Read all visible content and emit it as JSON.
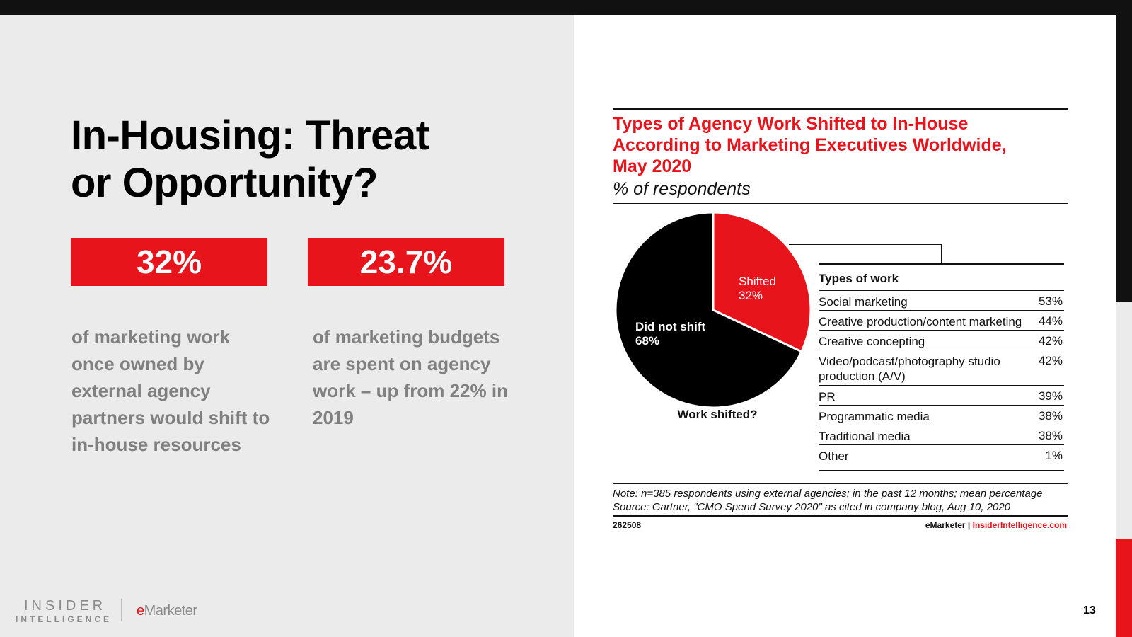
{
  "slide": {
    "headline_line1": "In-Housing: Threat",
    "headline_line2": "or Opportunity?",
    "stats": [
      {
        "value": "32%",
        "lines": [
          "of marketing work",
          "once owned by",
          "external agency",
          "partners would shift to",
          "in-house resources"
        ]
      },
      {
        "value": "23.7%",
        "lines": [
          "of marketing budgets",
          "are spent on agency",
          "work – up from 22% in",
          "2019"
        ]
      }
    ],
    "logo": {
      "insider": "INSIDER",
      "intelligence": "INTELLIGENCE",
      "emarketer_e": "e",
      "emarketer_rest": "Marketer"
    },
    "page_number": "13"
  },
  "colors": {
    "accent": "#e8141c",
    "dark": "#111111",
    "panel": "#ebebeb",
    "stat_text": "#808080"
  },
  "chart_data": {
    "type": "pie",
    "title_lines": [
      "Types of Agency Work Shifted to In-House",
      "According to Marketing Executives Worldwide,",
      "May 2020"
    ],
    "subtitle": "% of respondents",
    "pie_caption": "Work shifted?",
    "slices": [
      {
        "label": "Shifted",
        "value": 32,
        "value_label": "32%",
        "color": "#e8141c"
      },
      {
        "label": "Did not shift",
        "value": 68,
        "value_label": "68%",
        "color": "#000000"
      }
    ],
    "table": {
      "header": "Types of work",
      "rows": [
        {
          "label": "Social marketing",
          "value": "53%"
        },
        {
          "label": "Creative production/content marketing",
          "value": "44%"
        },
        {
          "label": "Creative concepting",
          "value": "42%"
        },
        {
          "label": "Video/podcast/photography studio production (A/V)",
          "value": "42%"
        },
        {
          "label": "PR",
          "value": "39%"
        },
        {
          "label": "Programmatic media",
          "value": "38%"
        },
        {
          "label": "Traditional media",
          "value": "38%"
        },
        {
          "label": "Other",
          "value": "1%"
        }
      ]
    },
    "note": "Note: n=385 respondents using external agencies; in the past 12 months; mean percentage",
    "source": "Source: Gartner, \"CMO Spend Survey 2020\" as cited in company blog, Aug 10, 2020",
    "chart_id": "262508",
    "brand_left": "eMarketer",
    "brand_sep": "|",
    "brand_right": "InsiderIntelligence.com"
  }
}
